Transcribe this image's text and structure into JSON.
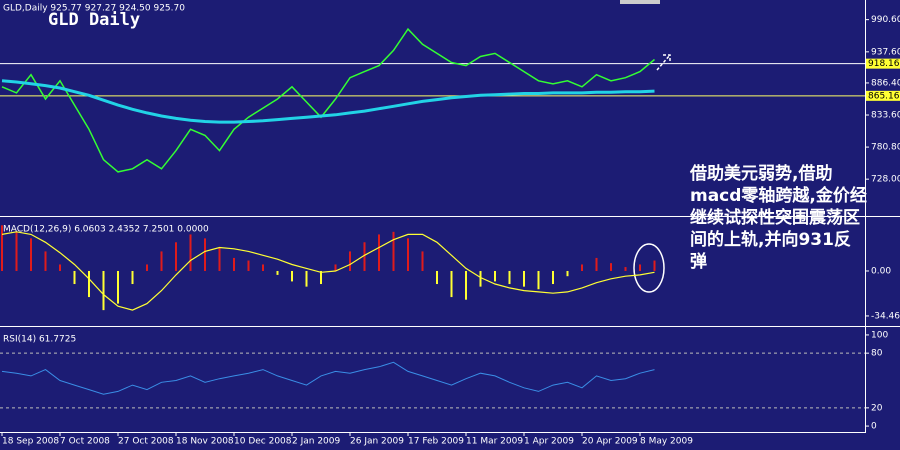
{
  "chart_data": [
    {
      "type": "line",
      "title": "GLD Daily",
      "info": "GLD,Daily  925.77 927.27 924.50 925.70",
      "categories": [
        "18 Sep 2008",
        null,
        null,
        null,
        "7 Oct 2008",
        null,
        null,
        null,
        "27 Oct 2008",
        null,
        null,
        null,
        "18 Nov 2008",
        null,
        null,
        null,
        "10 Dec 2008",
        null,
        null,
        null,
        "2 Jan 2009",
        null,
        null,
        null,
        "26 Jan 2009",
        null,
        null,
        null,
        "17 Feb 2009",
        null,
        null,
        null,
        "11 Mar 2009",
        null,
        null,
        null,
        "1 Apr 2009",
        null,
        null,
        null,
        "20 Apr 2009",
        null,
        null,
        null,
        "8 May 2009",
        null
      ],
      "series": [
        {
          "color": "#33ff33",
          "width": 1.5,
          "values": [
            880,
            870,
            900,
            860,
            890,
            850,
            810,
            760,
            740,
            745,
            760,
            745,
            775,
            810,
            800,
            775,
            810,
            830,
            845,
            860,
            880,
            855,
            830,
            860,
            895,
            905,
            915,
            940,
            975,
            950,
            935,
            920,
            915,
            930,
            935,
            920,
            905,
            890,
            885,
            890,
            880,
            900,
            890,
            895,
            905,
            925
          ]
        },
        {
          "color": "#22d3e6",
          "width": 3,
          "values": [
            890,
            888,
            885,
            882,
            878,
            872,
            866,
            858,
            850,
            843,
            837,
            832,
            828,
            825,
            823,
            822,
            822,
            823,
            824,
            826,
            828,
            830,
            832,
            834,
            837,
            840,
            844,
            848,
            852,
            856,
            859,
            862,
            864,
            866,
            867,
            868,
            869,
            869,
            870,
            870,
            870,
            871,
            871,
            872,
            872,
            873
          ]
        }
      ],
      "levels": [
        {
          "value": 918.16,
          "label": "918.16",
          "color": "#ffffff"
        },
        {
          "value": 865.16,
          "label": "865.16",
          "color": "#ffff66"
        }
      ],
      "ylim": [
        669,
        1018
      ],
      "yticks": [
        {
          "value": 990.6,
          "label": "990.60"
        },
        {
          "value": 937.6,
          "label": "937.60"
        },
        {
          "value": 886.4,
          "label": "886.40"
        },
        {
          "value": 833.6,
          "label": "833.60"
        },
        {
          "value": 780.8,
          "label": "780.80"
        },
        {
          "value": 728,
          "label": "728.00"
        }
      ],
      "annotation": [
        "借助美元弱势,借助",
        "macd零轴跨越,金价经",
        "继续试探性突围震荡区",
        "间的上轨,并向931反",
        "弹"
      ]
    },
    {
      "type": "bar",
      "title": "MACD(12,26,9) 6.0603 2.4352 7.2501 0.0000",
      "values": [
        35,
        30,
        25,
        15,
        5,
        -10,
        -20,
        -30,
        -25,
        -10,
        5,
        15,
        22,
        28,
        25,
        18,
        10,
        8,
        5,
        -3,
        -8,
        -12,
        -10,
        5,
        15,
        22,
        28,
        30,
        25,
        15,
        -10,
        -20,
        -22,
        -12,
        -8,
        -10,
        -12,
        -14,
        -10,
        -4,
        5,
        10,
        6,
        3,
        5,
        8
      ],
      "colors": {
        "positive": "#e01b1b",
        "negative": "#ffff33"
      },
      "series": [
        {
          "color": "#ffff33",
          "width": 1.2,
          "values": [
            28,
            30,
            28,
            22,
            14,
            5,
            -6,
            -18,
            -27,
            -30,
            -25,
            -15,
            -3,
            8,
            15,
            18,
            17,
            15,
            12,
            9,
            5,
            2,
            -1,
            0,
            5,
            12,
            18,
            24,
            28,
            28,
            22,
            12,
            2,
            -5,
            -10,
            -13,
            -15,
            -16,
            -17,
            -16,
            -13,
            -9,
            -6,
            -4,
            -3,
            -1
          ]
        }
      ],
      "ylim": [
        -41.4,
        40.6
      ],
      "yticks": [
        {
          "value": 0,
          "label": "0.00"
        },
        {
          "value": -34.46,
          "label": "-34.46"
        }
      ]
    },
    {
      "type": "line",
      "title": "RSI(14) 61.7725",
      "series": [
        {
          "color": "#3a8ee6",
          "width": 1,
          "values": [
            60,
            58,
            55,
            62,
            50,
            45,
            40,
            35,
            38,
            45,
            40,
            48,
            50,
            55,
            48,
            52,
            55,
            58,
            62,
            55,
            50,
            45,
            55,
            60,
            58,
            62,
            65,
            70,
            60,
            55,
            50,
            45,
            52,
            58,
            55,
            48,
            42,
            38,
            45,
            48,
            42,
            55,
            50,
            52,
            58,
            62
          ]
        }
      ],
      "ylim": [
        -6.5,
        107.6
      ],
      "yticks": [
        100,
        80,
        20,
        0
      ],
      "dashed": [
        80,
        20
      ]
    }
  ]
}
